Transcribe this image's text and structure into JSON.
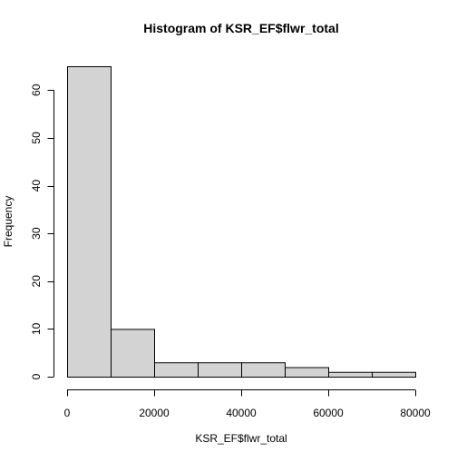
{
  "chart_data": {
    "type": "bar",
    "title": "Histogram of KSR_EF$flwr_total",
    "xlabel": "KSR_EF$flwr_total",
    "ylabel": "Frequency",
    "bins": [
      {
        "from": 0,
        "to": 10000,
        "count": 65
      },
      {
        "from": 10000,
        "to": 20000,
        "count": 10
      },
      {
        "from": 20000,
        "to": 30000,
        "count": 3
      },
      {
        "from": 30000,
        "to": 40000,
        "count": 3
      },
      {
        "from": 40000,
        "to": 50000,
        "count": 3
      },
      {
        "from": 50000,
        "to": 60000,
        "count": 2
      },
      {
        "from": 60000,
        "to": 70000,
        "count": 1
      },
      {
        "from": 70000,
        "to": 80000,
        "count": 1
      }
    ],
    "xlim": [
      0,
      80000
    ],
    "ylim": [
      0,
      65
    ],
    "x_ticks": [
      {
        "value": 0,
        "label": "0"
      },
      {
        "value": 20000,
        "label": "20000"
      },
      {
        "value": 40000,
        "label": "40000"
      },
      {
        "value": 60000,
        "label": "60000"
      },
      {
        "value": 80000,
        "label": "80000"
      }
    ],
    "y_ticks": [
      {
        "value": 0,
        "label": "0"
      },
      {
        "value": 10,
        "label": "10"
      },
      {
        "value": 20,
        "label": "20"
      },
      {
        "value": 30,
        "label": "30"
      },
      {
        "value": 40,
        "label": "40"
      },
      {
        "value": 50,
        "label": "50"
      },
      {
        "value": 60,
        "label": "60"
      }
    ],
    "bar_fill": "#d3d3d3",
    "bar_stroke": "#000000",
    "grid": false,
    "legend": "none"
  }
}
